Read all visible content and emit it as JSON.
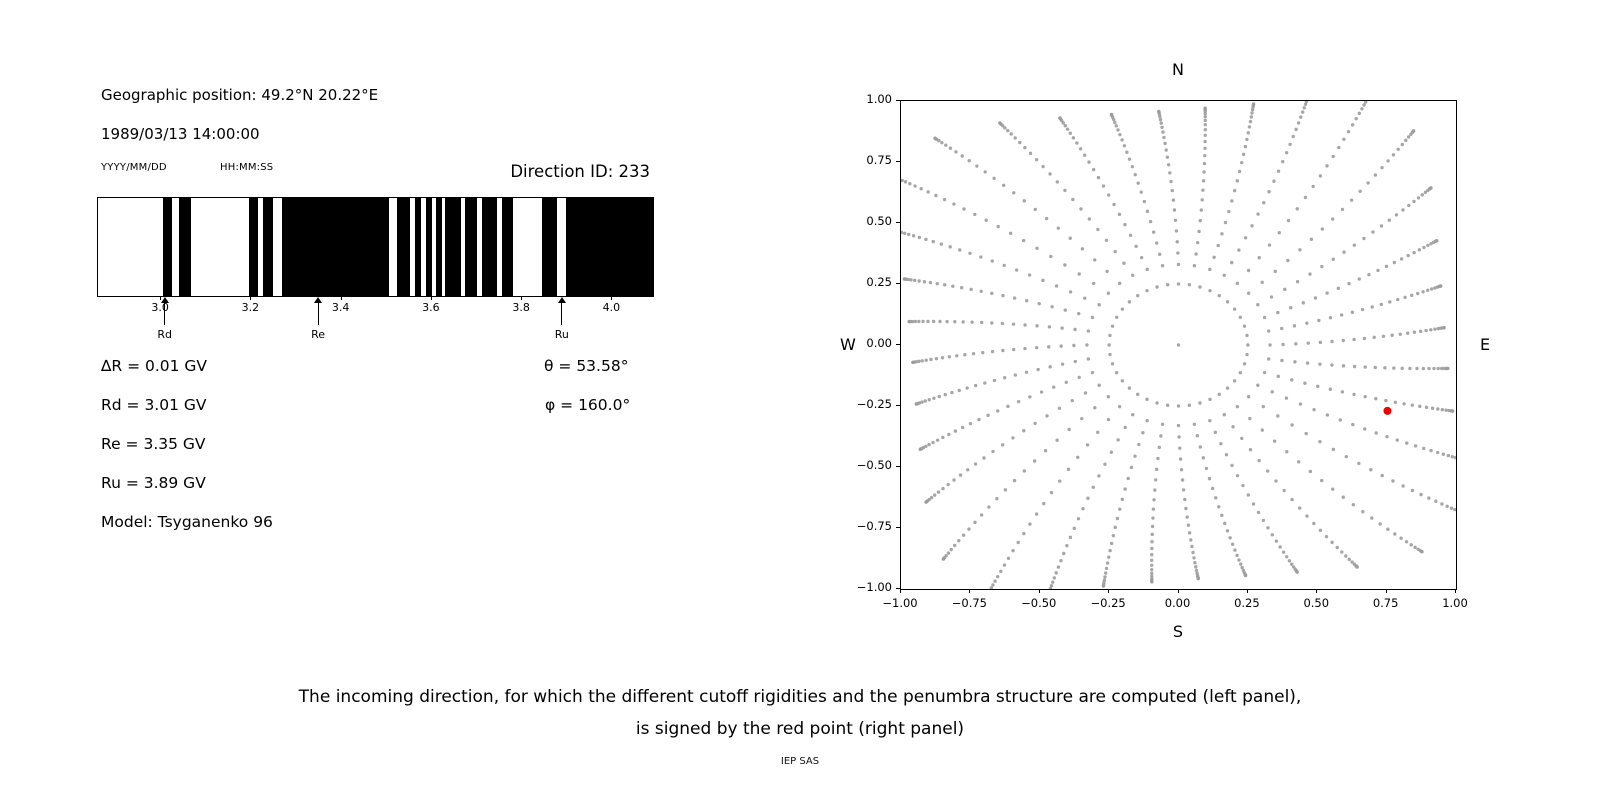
{
  "header": {
    "geographic_position": "Geographic position: 49.2°N 20.22°E",
    "datetime": "1989/03/13 14:00:00",
    "date_format_label": "YYYY/MM/DD",
    "time_format_label": "HH:MM:SS",
    "direction_id_label": "Direction ID: 233"
  },
  "results": {
    "delta_r": "∆R = 0.01 GV",
    "rd": "Rd = 3.01 GV",
    "re": "Re = 3.35 GV",
    "ru": "Ru = 3.89 GV",
    "model": "Model: Tsyganenko 96",
    "theta": "θ = 53.58°",
    "phi": "φ = 160.0°"
  },
  "caption": {
    "line1": "The incoming direction, for which the different cutoff rigidities and the penumbra structure are computed (left panel),",
    "line2": "is signed by the red point (right panel)",
    "credit": "IEP SAS"
  },
  "chart_data": [
    {
      "type": "bar",
      "name": "penumbra-structure",
      "title": "",
      "xlabel": "",
      "ylabel": "",
      "xlim": [
        2.86,
        4.09
      ],
      "xticks": [
        3.0,
        3.2,
        3.4,
        3.6,
        3.8,
        4.0
      ],
      "xtick_labels": [
        "3.0",
        "3.2",
        "3.4",
        "3.6",
        "3.8",
        "4.0"
      ],
      "bar_color": "#000000",
      "background": "#ffffff",
      "black_intervals_gv": [
        [
          3.005,
          3.025
        ],
        [
          3.04,
          3.066
        ],
        [
          3.194,
          3.214
        ],
        [
          3.225,
          3.247
        ],
        [
          3.268,
          3.505
        ],
        [
          3.522,
          3.552
        ],
        [
          3.562,
          3.576
        ],
        [
          3.586,
          3.6
        ],
        [
          3.61,
          3.622
        ],
        [
          3.63,
          3.664
        ],
        [
          3.674,
          3.7
        ],
        [
          3.71,
          3.744
        ],
        [
          3.756,
          3.78
        ],
        [
          3.845,
          3.878
        ],
        [
          3.898,
          4.09
        ]
      ],
      "arrows": [
        {
          "label": "Rd",
          "gv": 3.01
        },
        {
          "label": "Re",
          "gv": 3.35
        },
        {
          "label": "Ru",
          "gv": 3.89
        }
      ]
    },
    {
      "type": "scatter",
      "name": "incoming-direction-map",
      "title": "",
      "xlim": [
        -1,
        1
      ],
      "ylim": [
        -1,
        1
      ],
      "xticks": [
        -1,
        -0.75,
        -0.5,
        -0.25,
        0,
        0.25,
        0.5,
        0.75,
        1
      ],
      "xtick_labels": [
        "−1.00",
        "−0.75",
        "−0.50",
        "−0.25",
        "0.00",
        "0.25",
        "0.50",
        "0.75",
        "1.00"
      ],
      "yticks": [
        -1,
        -0.75,
        -0.5,
        -0.25,
        0,
        0.25,
        0.5,
        0.75,
        1
      ],
      "ytick_labels": [
        "−1.00",
        "−0.75",
        "−0.50",
        "−0.25",
        "0.00",
        "0.25",
        "0.50",
        "0.75",
        "1.00"
      ],
      "compass": {
        "top": "N",
        "bottom": "S",
        "left": "W",
        "right": "E"
      },
      "grid_pattern": {
        "azimuth_count": 36,
        "inner_ring_radius": 0.25,
        "inner_ring_points": 40,
        "center_point": true,
        "spoke_start_radius": 0.33,
        "spoke_points": 24,
        "spoke_zenith_start_deg": 18,
        "r_max_cap": 1.22,
        "edge_margin": 0.04,
        "spoke_curl_deg": 6
      },
      "point_color": "#9c9c9c",
      "red_point": {
        "x": 0.753,
        "y": -0.27,
        "color": "#ee0000"
      }
    }
  ]
}
